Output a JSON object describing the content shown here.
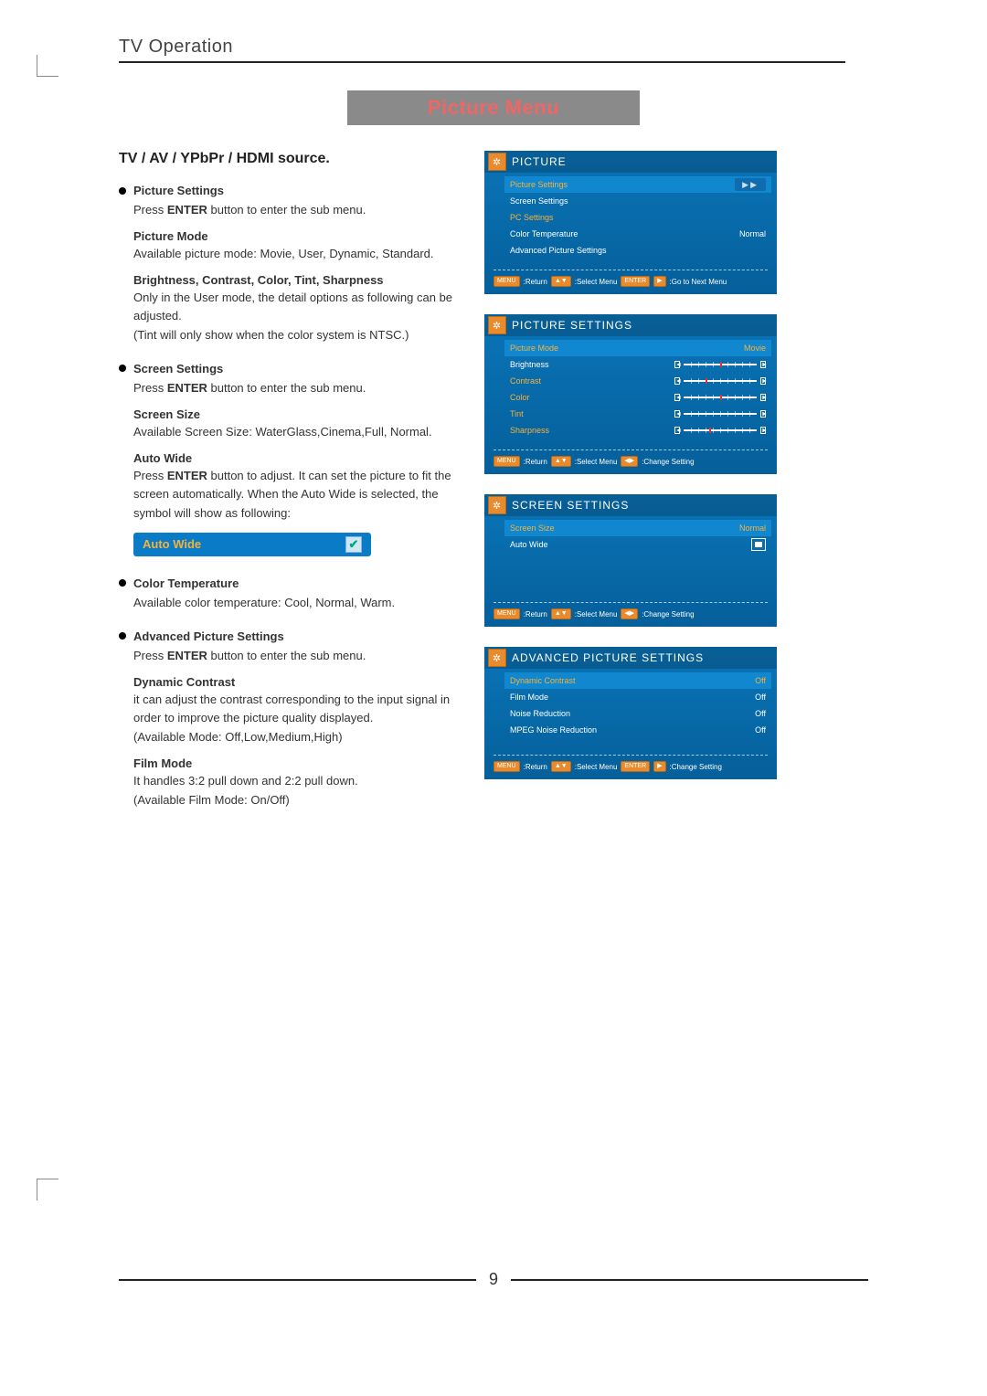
{
  "header": "TV  Operation",
  "banner": "Picture Menu",
  "section_title": "TV / AV / YPbPr / HDMI source.",
  "page_number": "9",
  "sections": {
    "picture_settings": {
      "title": "Picture Settings",
      "desc1": "Press ",
      "desc_enter": "ENTER",
      "desc2": " button to enter the sub menu.",
      "picture_mode_h": "Picture Mode",
      "picture_mode_t": "Available picture mode: Movie, User, Dynamic, Standard.",
      "bccts_h": "Brightness, Contrast, Color, Tint,  Sharpness",
      "bccts_t1": "Only in the User mode, the detail options as following can be adjusted.",
      "bccts_t2": "(Tint will only show when the color system is  NTSC.)"
    },
    "screen_settings": {
      "title": "Screen Settings",
      "desc1": "Press ",
      "desc_enter": "ENTER",
      "desc2": " button to enter the sub menu.",
      "size_h": "Screen Size",
      "size_t": "Available Screen Size: WaterGlass,Cinema,Full, Normal.",
      "auto_h": "Auto Wide",
      "auto_t1": "Press ",
      "auto_enter": "ENTER",
      "auto_t2": " button to adjust. It can set the picture to fit the screen automatically. When the Auto Wide is selected, the symbol will show as following:",
      "pill_label": "Auto Wide"
    },
    "color_temp": {
      "title": "Color Temperature",
      "text": "Available color temperature: Cool, Normal, Warm."
    },
    "adv": {
      "title": "Advanced Picture Settings",
      "desc1": "Press ",
      "desc_enter": "ENTER",
      "desc2": " button to enter the sub menu.",
      "dc_h": "Dynamic Contrast",
      "dc_t1": "it can adjust the contrast corresponding to the input signal in order to improve the picture quality displayed.",
      "dc_t2": "(Available Mode: Off,Low,Medium,High)",
      "fm_h": "Film Mode",
      "fm_t1": "It handles 3:2 pull down and 2:2 pull down.",
      "fm_t2": "(Available Film Mode: On/Off)"
    }
  },
  "osd1": {
    "title": "PICTURE",
    "rows": [
      {
        "label": "Picture Settings",
        "val": "▶▶",
        "hl": true,
        "colorval": false
      },
      {
        "label": "Screen Settings",
        "val": ""
      },
      {
        "label": "PC Settings",
        "val": "",
        "dim": true
      },
      {
        "label": "Color Temperature",
        "val": "Normal"
      },
      {
        "label": "Advanced Picture Settings",
        "val": ""
      }
    ],
    "foot": [
      {
        "btn": "MENU",
        "t": ":Return"
      },
      {
        "btn": "▲▼",
        "t": ":Select Menu"
      },
      {
        "btn": "ENTER",
        "t": ""
      },
      {
        "btn": "▶",
        "t": ":Go to Next Menu"
      }
    ]
  },
  "osd2": {
    "title": "PICTURE SETTINGS",
    "rows": [
      {
        "label": "Picture Mode",
        "val": "Movie",
        "hl": true,
        "colorval": true
      },
      {
        "label": "Brightness",
        "slider": 50
      },
      {
        "label": "Contrast",
        "slider": 30,
        "dim": true
      },
      {
        "label": "Color",
        "slider": 50,
        "dim": true
      },
      {
        "label": "Tint",
        "slider": null,
        "dim": true
      },
      {
        "label": "Sharpness",
        "slider": 35,
        "dim": true
      }
    ],
    "foot": [
      {
        "btn": "MENU",
        "t": ":Return"
      },
      {
        "btn": "▲▼",
        "t": ":Select Menu"
      },
      {
        "btn": "◀▶",
        "t": ":Change Setting"
      }
    ]
  },
  "osd3": {
    "title": "SCREEN SETTINGS",
    "rows": [
      {
        "label": "Screen Size",
        "val": "Normal",
        "hl": true,
        "colorval": true
      },
      {
        "label": "Auto Wide",
        "box": true
      }
    ],
    "foot": [
      {
        "btn": "MENU",
        "t": ":Return"
      },
      {
        "btn": "▲▼",
        "t": ":Select Menu"
      },
      {
        "btn": "◀▶",
        "t": ":Change Setting"
      }
    ]
  },
  "osd4": {
    "title": "ADVANCED PICTURE SETTINGS",
    "rows": [
      {
        "label": "Dynamic Contrast",
        "val": "Off",
        "hl": true,
        "colorval": true
      },
      {
        "label": "Film Mode",
        "val": "Off"
      },
      {
        "label": "Noise Reduction",
        "val": "Off"
      },
      {
        "label": "MPEG Noise Reduction",
        "val": "Off"
      }
    ],
    "foot": [
      {
        "btn": "MENU",
        "t": ":Return"
      },
      {
        "btn": "▲▼",
        "t": ":Select Menu"
      },
      {
        "btn": "ENTER",
        "t": ""
      },
      {
        "btn": "▶",
        "t": ":Change Setting"
      }
    ]
  }
}
